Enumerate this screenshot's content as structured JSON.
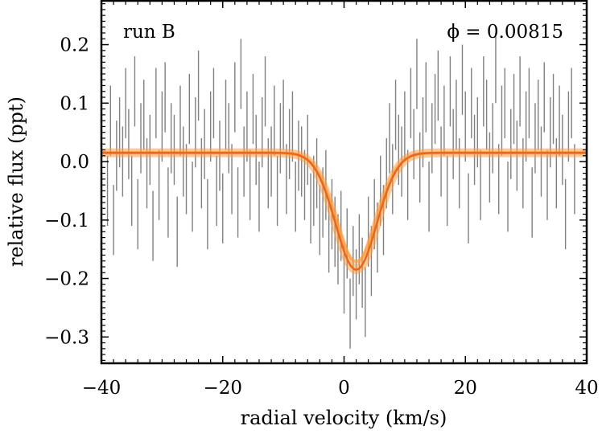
{
  "chart_data": {
    "type": "scatter",
    "title": "",
    "xlabel": "radial velocity (km/s)",
    "ylabel": "relative flux (ppt)",
    "xlim": [
      -40,
      40
    ],
    "ylim": [
      -0.345,
      0.275
    ],
    "xticks": [
      -40,
      -20,
      0,
      20,
      40
    ],
    "xtick_labels": [
      "−40",
      "−20",
      "0",
      "20",
      "40"
    ],
    "yticks": [
      -0.3,
      -0.2,
      -0.1,
      0.0,
      0.1,
      0.2
    ],
    "ytick_labels": [
      "−0.3",
      "−0.2",
      "−0.1",
      "0.0",
      "0.1",
      "0.2"
    ],
    "grid": false,
    "annotations": {
      "run_label": "run B",
      "phase_label": "ϕ = 0.00815"
    },
    "series": [
      {
        "name": "data",
        "style": "errorbar",
        "color": "#808080",
        "x_start": -39,
        "x_step": 0.5,
        "halfwidth": 0.06,
        "y": [
          -0.05,
          0.07,
          -0.1,
          0.01,
          0.05,
          0.0,
          0.1,
          0.03,
          -0.05,
          0.12,
          -0.09,
          0.04,
          0.08,
          -0.02,
          0.02,
          -0.11,
          0.1,
          -0.04,
          0.06,
          0.11,
          -0.07,
          0.04,
          0.02,
          -0.12,
          0.07,
          0.0,
          -0.03,
          0.09,
          -0.06,
          0.05,
          0.13,
          -0.02,
          0.03,
          -0.09,
          0.06,
          0.1,
          -0.05,
          0.01,
          -0.08,
          0.08,
          0.04,
          -0.03,
          0.11,
          -0.07,
          0.15,
          0.0,
          0.06,
          -0.04,
          0.09,
          0.02,
          -0.06,
          0.05,
          0.12,
          -0.02,
          0.0,
          0.07,
          -0.05,
          0.04,
          0.08,
          -0.03,
          0.03,
          0.06,
          -0.06,
          0.01,
          0.0,
          -0.04,
          0.02,
          -0.08,
          -0.05,
          -0.02,
          -0.1,
          -0.07,
          -0.04,
          -0.13,
          -0.09,
          -0.12,
          -0.15,
          -0.11,
          -0.2,
          -0.14,
          -0.26,
          -0.17,
          -0.21,
          -0.15,
          -0.19,
          -0.24,
          -0.12,
          -0.17,
          -0.09,
          -0.13,
          -0.05,
          -0.1,
          -0.02,
          0.04,
          -0.03,
          0.08,
          0.02,
          0.0,
          0.06,
          -0.04,
          0.1,
          0.03,
          0.15,
          -0.01,
          0.05,
          0.11,
          -0.06,
          0.04,
          0.09,
          0.13,
          0.0,
          0.07,
          -0.05,
          0.12,
          0.03,
          0.08,
          -0.02,
          0.14,
          0.06,
          -0.08,
          0.1,
          0.02,
          0.05,
          -0.04,
          0.12,
          0.08,
          -0.01,
          0.04,
          0.16,
          -0.03,
          0.07,
          0.1,
          -0.06,
          0.03,
          0.09,
          0.01,
          0.12,
          -0.02,
          0.06,
          0.1,
          -0.07,
          0.04,
          0.08,
          0.0,
          0.11,
          -0.04,
          0.05,
          0.09,
          -0.02,
          0.07,
          0.02,
          -0.09,
          0.06,
          0.1,
          -0.03
        ]
      },
      {
        "name": "gaussian fit",
        "style": "line",
        "color": "#e6671f",
        "band_color": "#ff9a3c",
        "baseline": 0.015,
        "depth": 0.2,
        "center": 2.0,
        "sigma": 3.4
      }
    ]
  }
}
